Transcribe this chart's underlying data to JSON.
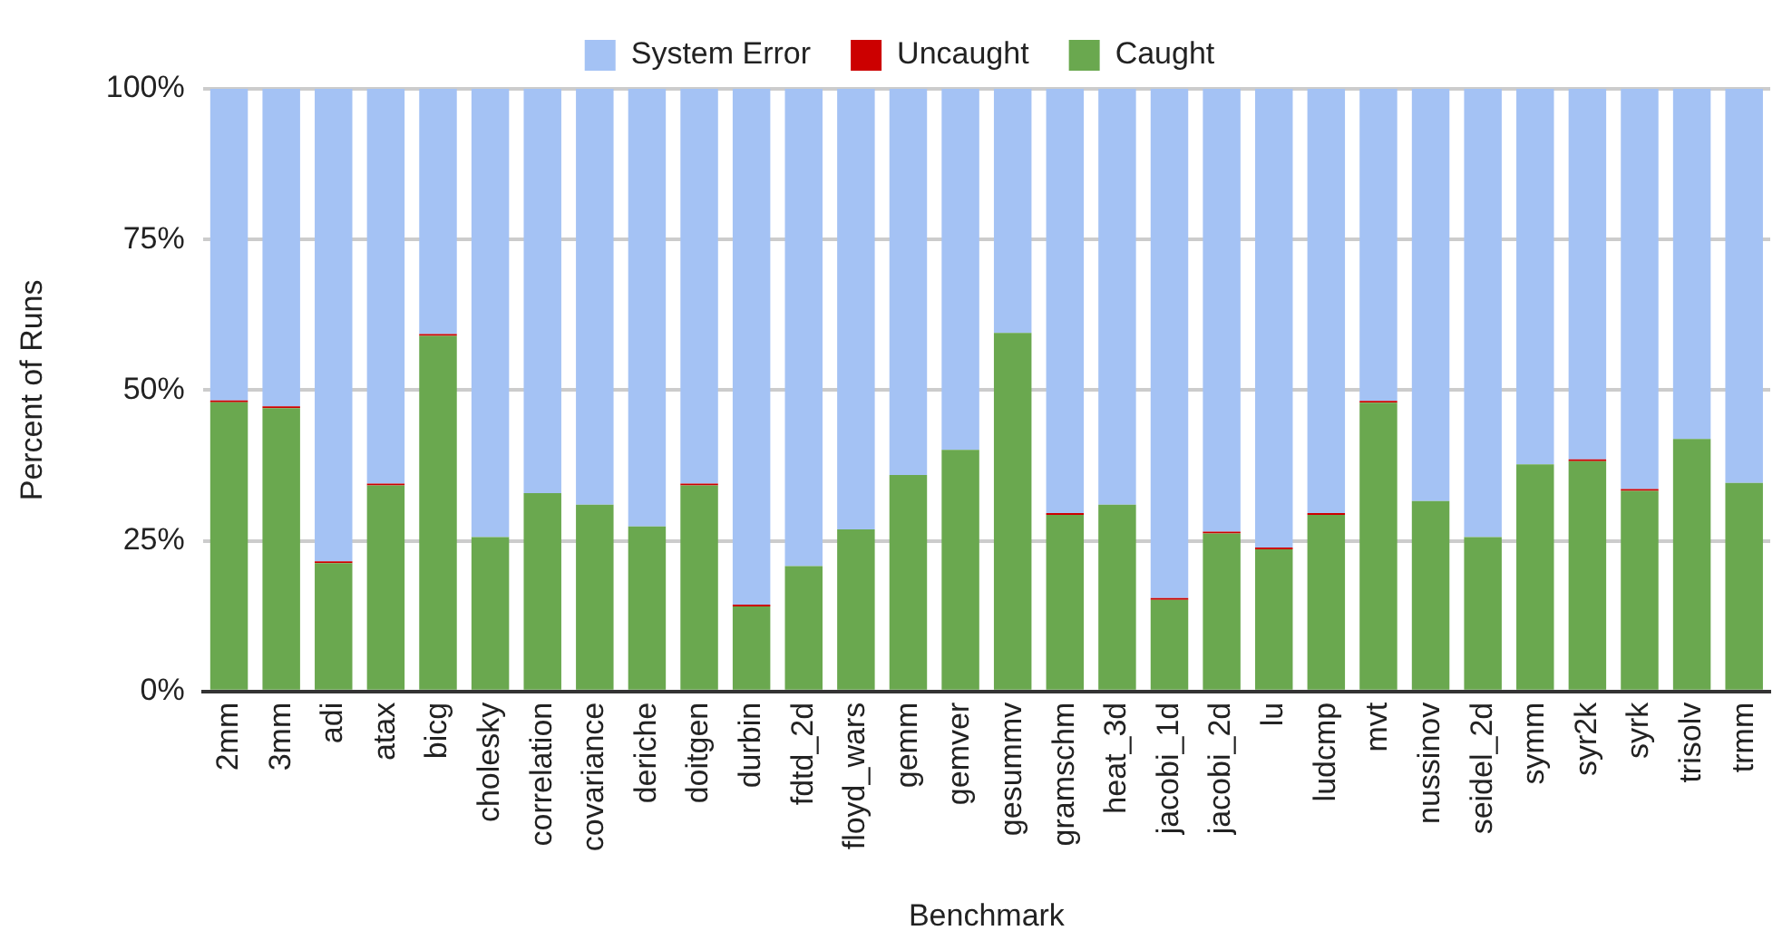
{
  "chart_data": {
    "type": "bar",
    "stacked": true,
    "xlabel": "Benchmark",
    "ylabel": "Percent of Runs",
    "categories": [
      "2mm",
      "3mm",
      "adi",
      "atax",
      "bicg",
      "cholesky",
      "correlation",
      "covariance",
      "deriche",
      "doitgen",
      "durbin",
      "fdtd_2d",
      "floyd_wars",
      "gemm",
      "gemver",
      "gesummv",
      "gramschm",
      "heat_3d",
      "jacobi_1d",
      "jacobi_2d",
      "lu",
      "ludcmp",
      "mvt",
      "nussinov",
      "seidel_2d",
      "symm",
      "syr2k",
      "syrk",
      "trisolv",
      "trmm"
    ],
    "series": [
      {
        "name": "Caught",
        "color": "#6aa84f",
        "values": [
          48.0,
          47.0,
          21.3,
          34.2,
          59.0,
          25.6,
          32.9,
          31.0,
          27.4,
          34.2,
          14.1,
          20.8,
          26.9,
          35.9,
          40.1,
          59.5,
          29.3,
          31.0,
          15.2,
          26.2,
          23.6,
          29.3,
          47.9,
          31.6,
          25.6,
          37.7,
          38.2,
          33.3,
          41.9,
          34.6
        ]
      },
      {
        "name": "Uncaught",
        "color": "#cc0000",
        "values": [
          0.3,
          0.3,
          0.3,
          0.3,
          0.3,
          0,
          0,
          0,
          0,
          0.3,
          0.3,
          0,
          0,
          0,
          0,
          0,
          0.3,
          0,
          0.3,
          0.3,
          0.3,
          0.3,
          0.3,
          0,
          0,
          0,
          0.3,
          0.3,
          0,
          0
        ]
      },
      {
        "name": "System Error",
        "color": "#a4c2f4",
        "values": [
          51.7,
          52.7,
          78.4,
          65.5,
          40.7,
          74.4,
          67.1,
          69.0,
          72.6,
          65.5,
          85.6,
          79.2,
          73.1,
          64.1,
          59.9,
          40.5,
          70.4,
          69.0,
          84.5,
          73.5,
          76.1,
          70.4,
          51.8,
          68.4,
          74.4,
          62.3,
          61.5,
          66.4,
          58.1,
          65.4
        ]
      }
    ],
    "ylim": [
      0,
      100
    ],
    "yticks": [
      {
        "value": 0,
        "label": "0%"
      },
      {
        "value": 25,
        "label": "25%"
      },
      {
        "value": 50,
        "label": "50%"
      },
      {
        "value": 75,
        "label": "75%"
      },
      {
        "value": 100,
        "label": "100%"
      }
    ],
    "grid": "y",
    "legend": "top"
  }
}
